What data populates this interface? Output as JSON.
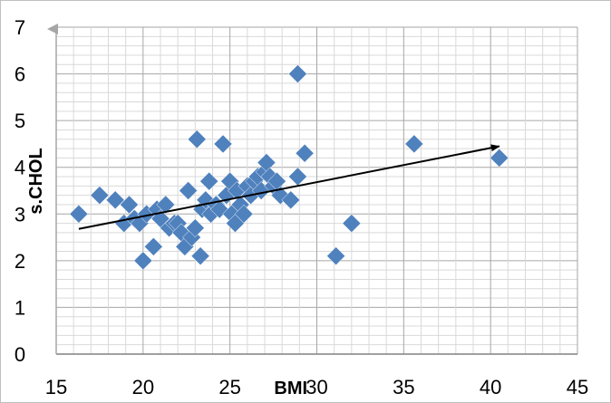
{
  "chart_data": {
    "type": "scatter",
    "title": "",
    "xlabel": "BMI",
    "ylabel": "s.CHOL",
    "xlim": [
      15,
      45
    ],
    "ylim": [
      0,
      7
    ],
    "x_ticks": [
      "15",
      "20",
      "25",
      "30",
      "35",
      "40",
      "45"
    ],
    "y_ticks": [
      "0",
      "1",
      "2",
      "3",
      "4",
      "5",
      "6",
      "7"
    ],
    "grid": true,
    "legend": "none",
    "marker_color": "#4f81bd",
    "marker": "diamond",
    "points": [
      {
        "x": 16.3,
        "y": 3.0
      },
      {
        "x": 17.5,
        "y": 3.4
      },
      {
        "x": 18.4,
        "y": 3.3
      },
      {
        "x": 18.9,
        "y": 2.8
      },
      {
        "x": 19.2,
        "y": 3.2
      },
      {
        "x": 19.5,
        "y": 2.9
      },
      {
        "x": 19.8,
        "y": 2.8
      },
      {
        "x": 20.0,
        "y": 2.0
      },
      {
        "x": 20.2,
        "y": 3.0
      },
      {
        "x": 20.6,
        "y": 2.3
      },
      {
        "x": 20.8,
        "y": 3.1
      },
      {
        "x": 21.0,
        "y": 2.9
      },
      {
        "x": 21.3,
        "y": 3.2
      },
      {
        "x": 21.5,
        "y": 2.7
      },
      {
        "x": 21.8,
        "y": 2.8
      },
      {
        "x": 22.0,
        "y": 2.8
      },
      {
        "x": 22.2,
        "y": 2.6
      },
      {
        "x": 22.4,
        "y": 2.3
      },
      {
        "x": 22.6,
        "y": 3.5
      },
      {
        "x": 22.8,
        "y": 2.5
      },
      {
        "x": 23.0,
        "y": 2.7
      },
      {
        "x": 23.1,
        "y": 4.6
      },
      {
        "x": 23.3,
        "y": 2.1
      },
      {
        "x": 23.4,
        "y": 3.1
      },
      {
        "x": 23.6,
        "y": 3.3
      },
      {
        "x": 23.8,
        "y": 3.7
      },
      {
        "x": 23.9,
        "y": 3.0
      },
      {
        "x": 24.2,
        "y": 3.2
      },
      {
        "x": 24.4,
        "y": 3.1
      },
      {
        "x": 24.6,
        "y": 4.5
      },
      {
        "x": 24.8,
        "y": 3.4
      },
      {
        "x": 25.0,
        "y": 3.7
      },
      {
        "x": 25.1,
        "y": 3.0
      },
      {
        "x": 25.3,
        "y": 2.8
      },
      {
        "x": 25.4,
        "y": 3.5
      },
      {
        "x": 25.6,
        "y": 3.2
      },
      {
        "x": 25.8,
        "y": 3.0
      },
      {
        "x": 26.0,
        "y": 3.6
      },
      {
        "x": 26.2,
        "y": 3.4
      },
      {
        "x": 26.4,
        "y": 3.7
      },
      {
        "x": 26.6,
        "y": 3.8
      },
      {
        "x": 26.8,
        "y": 3.5
      },
      {
        "x": 27.0,
        "y": 3.9
      },
      {
        "x": 27.1,
        "y": 4.1
      },
      {
        "x": 27.3,
        "y": 3.8
      },
      {
        "x": 27.5,
        "y": 3.6
      },
      {
        "x": 27.7,
        "y": 3.7
      },
      {
        "x": 27.9,
        "y": 3.4
      },
      {
        "x": 28.5,
        "y": 3.3
      },
      {
        "x": 28.9,
        "y": 3.8
      },
      {
        "x": 28.9,
        "y": 6.0
      },
      {
        "x": 29.3,
        "y": 4.3
      },
      {
        "x": 31.1,
        "y": 2.1
      },
      {
        "x": 32.0,
        "y": 2.8
      },
      {
        "x": 35.6,
        "y": 4.5
      },
      {
        "x": 40.5,
        "y": 4.2
      }
    ],
    "trendline": {
      "x": [
        16.3,
        40.5
      ],
      "y": [
        2.68,
        4.45
      ]
    }
  }
}
